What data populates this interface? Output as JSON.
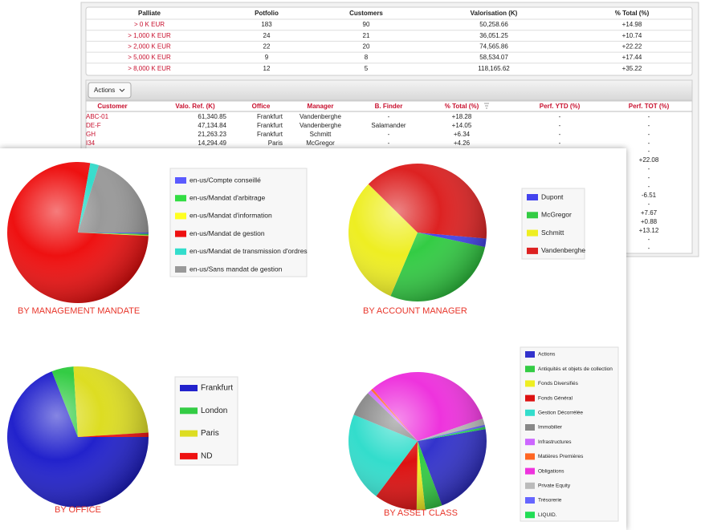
{
  "summary_table": {
    "columns": [
      "Palliate",
      "Potfolio",
      "Customers",
      "Valorisation (K)",
      "% Total (%)"
    ],
    "rows": [
      [
        "> 0 K EUR",
        "183",
        "90",
        "50,258.66",
        "+14.98"
      ],
      [
        "> 1,000 K EUR",
        "24",
        "21",
        "36,051.25",
        "+10.74"
      ],
      [
        "> 2,000 K EUR",
        "22",
        "20",
        "74,565.86",
        "+22.22"
      ],
      [
        "> 5,000 K EUR",
        "9",
        "8",
        "58,534.07",
        "+17.44"
      ],
      [
        "> 8,000 K EUR",
        "12",
        "5",
        "118,165.62",
        "+35.22"
      ]
    ]
  },
  "actions_button": "Actions",
  "customer_table": {
    "columns": [
      "Customer",
      "Valo. Ref. (K)",
      "Office",
      "Manager",
      "B. Finder",
      "% Total (%)",
      "Perf. YTD (%)",
      "Perf. TOT (%)"
    ],
    "rows": [
      [
        "ABC-01",
        "61,340.85",
        "Frankfurt",
        "Vandenberghe",
        "-",
        "+18.28",
        "-",
        "-"
      ],
      [
        "DE-F",
        "47,134.84",
        "Frankfurt",
        "Vandenberghe",
        "Salamander",
        "+14.05",
        "-",
        "-"
      ],
      [
        "GH",
        "21,263.23",
        "Frankfurt",
        "Schmitt",
        "-",
        "+6.34",
        "-",
        "-"
      ],
      [
        "I34",
        "14,294.49",
        "Paris",
        "McGregor",
        "-",
        "+4.26",
        "-",
        "-"
      ]
    ],
    "perf_tot_more": [
      "-",
      "+22.08",
      "-",
      "-",
      "-",
      "-6.51",
      "-",
      "+7.67",
      "+0.88",
      "+13.12",
      "-",
      "-"
    ]
  },
  "chart_data": [
    {
      "type": "pie",
      "title": "BY MANAGEMENT MANDATE",
      "categories": [
        "en-us/Compte conseillé",
        "en-us/Mandat d'arbitrage",
        "en-us/Mandat d'information",
        "en-us/Mandat de gestion",
        "en-us/Mandat de transmission d'ordres",
        "en-us/Sans mandat de gestion"
      ],
      "values": [
        0.3,
        0.3,
        0.2,
        77,
        2,
        20.2
      ],
      "colors": [
        "#5b5bff",
        "#33dd44",
        "#ffff22",
        "#ee1111",
        "#33ddcc",
        "#999999"
      ]
    },
    {
      "type": "pie",
      "title": "BY ACCOUNT MANAGER",
      "categories": [
        "Dupont",
        "McGregor",
        "Schmitt",
        "Vandenberghe"
      ],
      "values": [
        2,
        28,
        31,
        39
      ],
      "colors": [
        "#4444ee",
        "#33cc44",
        "#eeee22",
        "#dd2222"
      ]
    },
    {
      "type": "pie",
      "title": "BY OFFICE",
      "categories": [
        "Frankfurt",
        "London",
        "Paris",
        "ND"
      ],
      "values": [
        69,
        5,
        25,
        1
      ],
      "colors": [
        "#2222cc",
        "#33cc44",
        "#dddd22",
        "#ee1111"
      ]
    },
    {
      "type": "pie",
      "title": "BY ASSET CLASS",
      "categories": [
        "Actions",
        "Antiquités et objets de collection",
        "Fonds Diversifiés",
        "Fonds Général",
        "Gestion Décorrélée",
        "Immobilier",
        "Infrastructures",
        "Matières Premières",
        "Obligations",
        "Private Equity",
        "Trésorerie",
        "LIQUID."
      ],
      "values": [
        22,
        4,
        2,
        10,
        21,
        6,
        1,
        0.5,
        31,
        1.5,
        0.5,
        0.5
      ],
      "colors": [
        "#3333cc",
        "#33cc44",
        "#eeee22",
        "#dd1111",
        "#33ddcc",
        "#888888",
        "#cc66ff",
        "#ff6622",
        "#ee33dd",
        "#bbbbbb",
        "#6666ff",
        "#22dd55"
      ]
    }
  ]
}
